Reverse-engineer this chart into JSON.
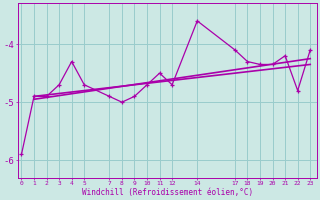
{
  "xlabel": "Windchill (Refroidissement éolien,°C)",
  "background_color": "#cce8e4",
  "line_color": "#aa00aa",
  "grid_color": "#99cccc",
  "hours": [
    0,
    1,
    2,
    3,
    4,
    5,
    7,
    8,
    9,
    10,
    11,
    12,
    14,
    17,
    18,
    19,
    20,
    21,
    22,
    23
  ],
  "windchill": [
    -5.9,
    -4.9,
    -4.9,
    -4.7,
    -4.3,
    -4.7,
    -4.9,
    -5.0,
    -4.9,
    -4.7,
    -4.5,
    -4.7,
    -3.6,
    -4.1,
    -4.3,
    -4.35,
    -4.35,
    -4.2,
    -4.8,
    -4.1
  ],
  "trend1_x": [
    1,
    23
  ],
  "trend1_y": [
    -4.9,
    -4.35
  ],
  "trend2_x": [
    1,
    23
  ],
  "trend2_y": [
    -4.95,
    -4.25
  ],
  "ylim": [
    -6.3,
    -3.3
  ],
  "xlim": [
    -0.3,
    23.5
  ],
  "yticks": [
    -6,
    -5,
    -4
  ],
  "xticks": [
    0,
    1,
    2,
    3,
    4,
    5,
    7,
    8,
    9,
    10,
    11,
    12,
    14,
    17,
    18,
    19,
    20,
    21,
    22,
    23
  ]
}
